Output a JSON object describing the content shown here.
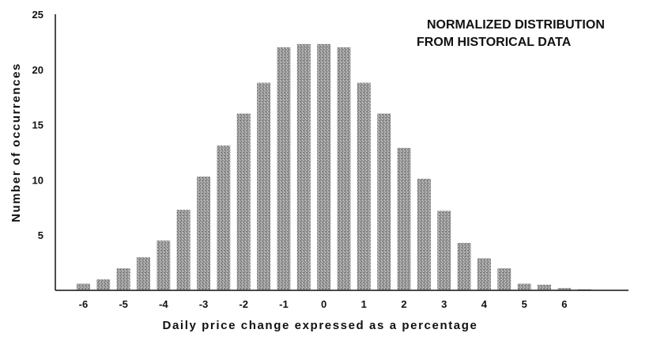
{
  "chart_data": {
    "type": "bar",
    "title_lines": [
      "NORMALIZED DISTRIBUTION",
      "FROM HISTORICAL DATA"
    ],
    "xlabel": "Daily price change expressed as a percentage",
    "ylabel": "Number of occurrences",
    "ylim": [
      0,
      25
    ],
    "yticks": [
      5,
      10,
      15,
      20,
      25
    ],
    "xtick_labels": [
      "-6",
      "-5",
      "-4",
      "-3",
      "-2",
      "-1",
      "0",
      "1",
      "2",
      "3",
      "4",
      "5",
      "6"
    ],
    "xlim": [
      -6.5,
      7.6
    ],
    "grid": false,
    "legend": "none",
    "bar_color": "#8a8a8a",
    "bars": [
      {
        "x": -6.0,
        "y": 0.6
      },
      {
        "x": -5.5,
        "y": 1.0
      },
      {
        "x": -5.0,
        "y": 2.0
      },
      {
        "x": -4.5,
        "y": 3.0
      },
      {
        "x": -4.0,
        "y": 4.5
      },
      {
        "x": -3.5,
        "y": 7.3
      },
      {
        "x": -3.0,
        "y": 10.3
      },
      {
        "x": -2.5,
        "y": 13.1
      },
      {
        "x": -2.0,
        "y": 16.0
      },
      {
        "x": -1.5,
        "y": 18.8
      },
      {
        "x": -1.0,
        "y": 22.0
      },
      {
        "x": -0.5,
        "y": 22.3
      },
      {
        "x": 0.0,
        "y": 22.3
      },
      {
        "x": 0.5,
        "y": 22.0
      },
      {
        "x": 1.0,
        "y": 18.8
      },
      {
        "x": 1.5,
        "y": 16.0
      },
      {
        "x": 2.0,
        "y": 12.9
      },
      {
        "x": 2.5,
        "y": 10.1
      },
      {
        "x": 3.0,
        "y": 7.2
      },
      {
        "x": 3.5,
        "y": 4.3
      },
      {
        "x": 4.0,
        "y": 2.9
      },
      {
        "x": 4.5,
        "y": 2.0
      },
      {
        "x": 5.0,
        "y": 0.6
      },
      {
        "x": 5.5,
        "y": 0.5
      },
      {
        "x": 6.0,
        "y": 0.2
      },
      {
        "x": 6.5,
        "y": 0.1
      }
    ]
  }
}
